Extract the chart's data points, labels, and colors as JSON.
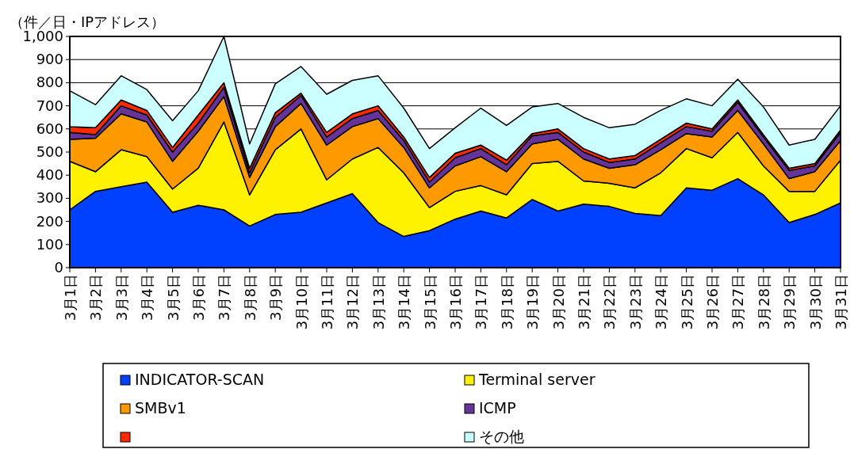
{
  "chart_data": {
    "type": "area",
    "stacked": true,
    "ylabel": "（件／日・IPアドレス）",
    "categories": [
      "3月1日",
      "3月2日",
      "3月3日",
      "3月4日",
      "3月5日",
      "3月6日",
      "3月7日",
      "3月8日",
      "3月9日",
      "3月10日",
      "3月11日",
      "3月12日",
      "3月13日",
      "3月14日",
      "3月15日",
      "3月16日",
      "3月17日",
      "3月18日",
      "3月19日",
      "3月20日",
      "3月21日",
      "3月22日",
      "3月23日",
      "3月24日",
      "3月25日",
      "3月26日",
      "3月27日",
      "3月28日",
      "3月29日",
      "3月30日",
      "3月31日"
    ],
    "series": [
      {
        "name": "INDICATOR-SCAN",
        "color": "#0040ff",
        "values": [
          250,
          330,
          350,
          370,
          240,
          270,
          250,
          180,
          230,
          240,
          280,
          320,
          195,
          135,
          160,
          210,
          245,
          215,
          295,
          245,
          275,
          265,
          235,
          225,
          345,
          335,
          385,
          315,
          195,
          230,
          280
        ]
      },
      {
        "name": "Terminal server",
        "color": "#fff200",
        "values": [
          210,
          85,
          160,
          110,
          100,
          160,
          380,
          135,
          280,
          360,
          100,
          150,
          325,
          275,
          100,
          120,
          110,
          100,
          155,
          215,
          100,
          100,
          110,
          185,
          170,
          140,
          200,
          125,
          135,
          100,
          185
        ]
      },
      {
        "name": "SMBv1",
        "color": "#ff9900",
        "values": [
          95,
          145,
          155,
          150,
          120,
          160,
          110,
          75,
          100,
          110,
          150,
          140,
          125,
          110,
          85,
          110,
          125,
          100,
          85,
          95,
          95,
          65,
          100,
          100,
          65,
          90,
          95,
          95,
          55,
          85,
          85
        ]
      },
      {
        "name": "ICMP",
        "color": "#663399",
        "values": [
          30,
          15,
          35,
          30,
          40,
          35,
          40,
          20,
          40,
          35,
          35,
          35,
          35,
          30,
          25,
          35,
          35,
          30,
          35,
          30,
          30,
          25,
          25,
          30,
          30,
          25,
          35,
          30,
          35,
          25,
          35
        ]
      },
      {
        "color": "#ff2a00",
        "values": [
          25,
          30,
          25,
          20,
          20,
          35,
          20,
          20,
          20,
          10,
          20,
          20,
          20,
          15,
          20,
          20,
          15,
          20,
          10,
          15,
          15,
          15,
          15,
          15,
          15,
          10,
          10,
          10,
          10,
          10,
          10
        ]
      },
      {
        "name": "その他",
        "color": "#ccffff",
        "values": [
          155,
          100,
          105,
          90,
          115,
          105,
          200,
          105,
          125,
          115,
          165,
          145,
          130,
          125,
          125,
          110,
          160,
          150,
          115,
          110,
          135,
          135,
          135,
          125,
          105,
          100,
          90,
          120,
          100,
          105,
          105
        ]
      }
    ],
    "ylim": [
      0,
      1000
    ],
    "yticks": [
      0,
      100,
      200,
      300,
      400,
      500,
      600,
      700,
      800,
      900,
      {
        "value": 1000,
        "label": "1,000"
      }
    ],
    "grid": "y",
    "legend": "bottom"
  }
}
